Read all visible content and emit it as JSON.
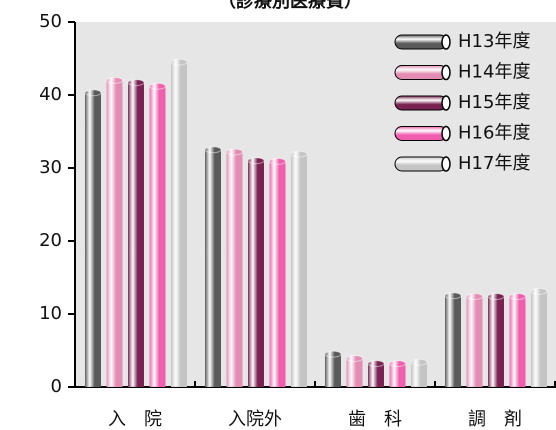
{
  "chart_data": {
    "type": "bar",
    "title": "（診療別医療費）",
    "categories": [
      "入　院",
      "入院外",
      "歯　科",
      "調　剤"
    ],
    "series": [
      {
        "name": "H13年度",
        "color": "#5a5a5a",
        "values": [
          40.3,
          32.5,
          4.5,
          12.5
        ]
      },
      {
        "name": "H14年度",
        "color": "#e38db5",
        "values": [
          42.0,
          32.2,
          3.9,
          12.4
        ]
      },
      {
        "name": "H15年度",
        "color": "#7a2352",
        "values": [
          41.7,
          31.0,
          3.2,
          12.4
        ]
      },
      {
        "name": "H16年度",
        "color": "#f05fae",
        "values": [
          41.2,
          30.9,
          3.2,
          12.4
        ]
      },
      {
        "name": "H17年度",
        "color": "#c4c4c4",
        "values": [
          44.5,
          31.9,
          3.4,
          13.1
        ]
      }
    ],
    "ylim": [
      0,
      50
    ],
    "yticks": [
      0,
      10,
      20,
      30,
      40,
      50
    ],
    "legend": "upper right"
  }
}
